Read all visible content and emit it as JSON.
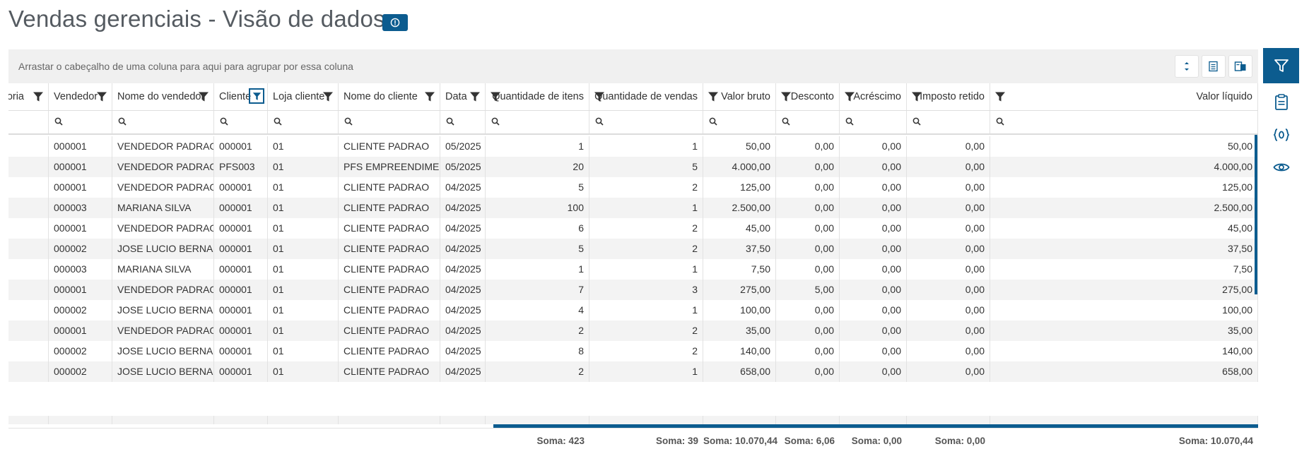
{
  "page": {
    "title": "Vendas gerenciais - Visão de dados",
    "info_icon": "info-circle-icon",
    "group_bar_text": "Arrastar o cabeçalho de uma coluna para aqui para agrupar por essa coluna"
  },
  "toolbar": {
    "icons": [
      "expand-collapse-icon",
      "export-excel-icon",
      "column-chooser-icon"
    ]
  },
  "side_panel": {
    "icons": [
      "filter-icon",
      "clipboard-icon",
      "variables-icon",
      "eye-icon"
    ],
    "active": "filter-icon"
  },
  "columns": [
    {
      "key": "categoria",
      "label": "goria",
      "align": "left"
    },
    {
      "key": "vendedor",
      "label": "Vendedor",
      "align": "left"
    },
    {
      "key": "nome_vendedor",
      "label": "Nome do vendedor",
      "align": "left"
    },
    {
      "key": "cliente",
      "label": "Cliente",
      "align": "left",
      "filter_active": true
    },
    {
      "key": "loja",
      "label": "Loja cliente",
      "align": "left"
    },
    {
      "key": "nome_cliente",
      "label": "Nome do cliente",
      "align": "left"
    },
    {
      "key": "data",
      "label": "Data",
      "align": "left"
    },
    {
      "key": "qtd_itens",
      "label": "Quantidade de itens",
      "align": "right"
    },
    {
      "key": "qtd_vendas",
      "label": "Quantidade de vendas",
      "align": "right"
    },
    {
      "key": "valor_bruto",
      "label": "Valor bruto",
      "align": "right"
    },
    {
      "key": "desconto",
      "label": "Desconto",
      "align": "right"
    },
    {
      "key": "acrescimo",
      "label": "Acréscimo",
      "align": "right"
    },
    {
      "key": "imposto",
      "label": "Imposto retido",
      "align": "right"
    },
    {
      "key": "valor_liquido",
      "label": "Valor líquido",
      "align": "right"
    }
  ],
  "rows": [
    [
      "",
      "000001",
      "VENDEDOR PADRAO",
      "000001",
      "01",
      "CLIENTE PADRAO",
      "05/2025",
      "1",
      "1",
      "50,00",
      "0,00",
      "0,00",
      "0,00",
      "50,00"
    ],
    [
      "",
      "000001",
      "VENDEDOR PADRAO",
      "PFS003",
      "01",
      "PFS EMPREENDIMENTOS",
      "05/2025",
      "20",
      "5",
      "4.000,00",
      "0,00",
      "0,00",
      "0,00",
      "4.000,00"
    ],
    [
      "",
      "000001",
      "VENDEDOR PADRAO",
      "000001",
      "01",
      "CLIENTE PADRAO",
      "04/2025",
      "5",
      "2",
      "125,00",
      "0,00",
      "0,00",
      "0,00",
      "125,00"
    ],
    [
      "",
      "000003",
      "MARIANA SILVA",
      "000001",
      "01",
      "CLIENTE PADRAO",
      "04/2025",
      "100",
      "1",
      "2.500,00",
      "0,00",
      "0,00",
      "0,00",
      "2.500,00"
    ],
    [
      "",
      "000001",
      "VENDEDOR PADRAO",
      "000001",
      "01",
      "CLIENTE PADRAO",
      "04/2025",
      "6",
      "2",
      "45,00",
      "0,00",
      "0,00",
      "0,00",
      "45,00"
    ],
    [
      "",
      "000002",
      "JOSE LUCIO BERNADEI",
      "000001",
      "01",
      "CLIENTE PADRAO",
      "04/2025",
      "5",
      "2",
      "37,50",
      "0,00",
      "0,00",
      "0,00",
      "37,50"
    ],
    [
      "",
      "000003",
      "MARIANA SILVA",
      "000001",
      "01",
      "CLIENTE PADRAO",
      "04/2025",
      "1",
      "1",
      "7,50",
      "0,00",
      "0,00",
      "0,00",
      "7,50"
    ],
    [
      "",
      "000001",
      "VENDEDOR PADRAO",
      "000001",
      "01",
      "CLIENTE PADRAO",
      "04/2025",
      "7",
      "3",
      "275,00",
      "5,00",
      "0,00",
      "0,00",
      "275,00"
    ],
    [
      "",
      "000002",
      "JOSE LUCIO BERNADEI",
      "000001",
      "01",
      "CLIENTE PADRAO",
      "04/2025",
      "4",
      "1",
      "100,00",
      "0,00",
      "0,00",
      "0,00",
      "100,00"
    ],
    [
      "",
      "000001",
      "VENDEDOR PADRAO",
      "000001",
      "01",
      "CLIENTE PADRAO",
      "04/2025",
      "2",
      "2",
      "35,00",
      "0,00",
      "0,00",
      "0,00",
      "35,00"
    ],
    [
      "",
      "000002",
      "JOSE LUCIO BERNADEI",
      "000001",
      "01",
      "CLIENTE PADRAO",
      "04/2025",
      "8",
      "2",
      "140,00",
      "0,00",
      "0,00",
      "0,00",
      "140,00"
    ],
    [
      "",
      "000002",
      "JOSE LUCIO BERNADEI",
      "000001",
      "01",
      "CLIENTE PADRAO",
      "04/2025",
      "2",
      "1",
      "658,00",
      "0,00",
      "0,00",
      "0,00",
      "658,00"
    ]
  ],
  "footer": {
    "qtd_itens": "Soma: 423",
    "qtd_vendas": "Soma: 39",
    "valor_bruto": "Soma: 10.070,44",
    "desconto": "Soma: 6,06",
    "acrescimo": "Soma: 0,00",
    "imposto": "Soma: 0,00",
    "valor_liquido": "Soma: 10.070,44"
  },
  "colors": {
    "accent": "#0c5c8f",
    "row_alt": "#f3f3f3",
    "group_bar": "#f0f0f0"
  }
}
